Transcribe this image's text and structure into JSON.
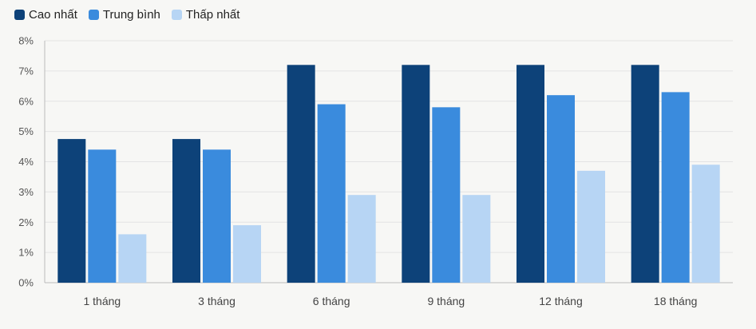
{
  "chart_data": {
    "type": "bar",
    "categories": [
      "1 tháng",
      "3 tháng",
      "6 tháng",
      "9 tháng",
      "12 tháng",
      "18 tháng"
    ],
    "series": [
      {
        "name": "Cao nhất",
        "color": "#0d4279",
        "values": [
          4.75,
          4.75,
          7.2,
          7.2,
          7.2,
          7.2
        ]
      },
      {
        "name": "Trung bình",
        "color": "#3a8bdd",
        "values": [
          4.4,
          4.4,
          5.9,
          5.8,
          6.2,
          6.3
        ]
      },
      {
        "name": "Thấp nhất",
        "color": "#b7d5f4",
        "values": [
          1.6,
          1.9,
          2.9,
          2.9,
          3.7,
          3.9
        ]
      }
    ],
    "y_ticks": [
      "0%",
      "1%",
      "2%",
      "3%",
      "4%",
      "5%",
      "6%",
      "7%",
      "8%"
    ],
    "ylim": [
      0,
      8
    ],
    "legend_position": "top-left",
    "grid": true
  }
}
